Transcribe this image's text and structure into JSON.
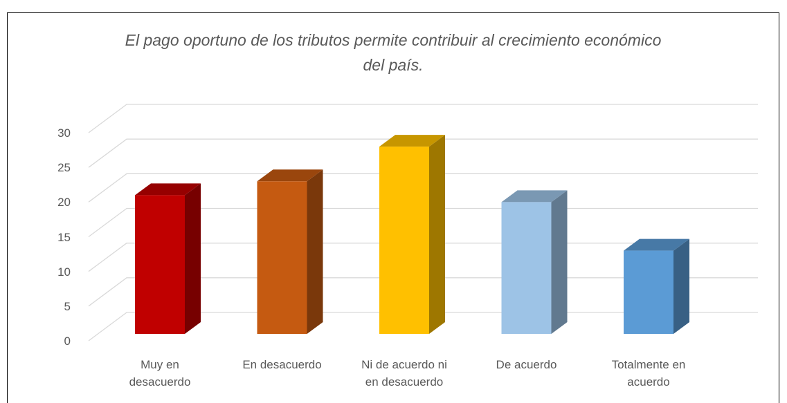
{
  "chart_data": {
    "type": "bar3d",
    "title": "El pago oportuno de los tributos permite contribuir al crecimiento económico del país.",
    "categories": [
      "Muy en desacuerdo",
      "En desacuerdo",
      "Ni de acuerdo ni en desacuerdo",
      "De acuerdo",
      "Totalmente en acuerdo"
    ],
    "values": [
      20,
      22,
      27,
      19,
      12
    ],
    "colors": [
      "#c00000",
      "#c55a11",
      "#ffc000",
      "#9dc3e6",
      "#5b9bd5"
    ],
    "ylim": [
      0,
      30
    ],
    "yticks": [
      0,
      5,
      10,
      15,
      20,
      25,
      30
    ],
    "grid": true
  }
}
